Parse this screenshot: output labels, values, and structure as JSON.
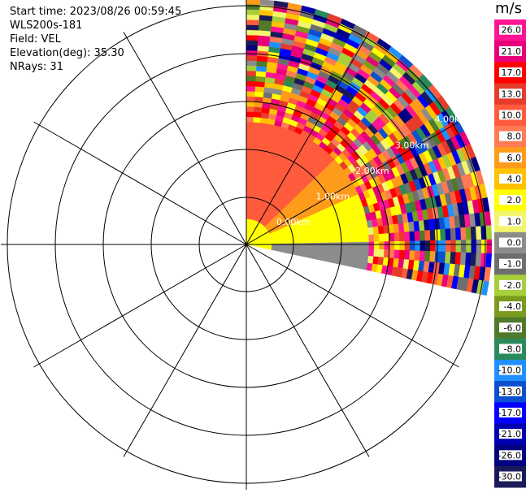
{
  "info": {
    "start_time": "Start time: 2023/08/26 00:59:45",
    "site": "WLS200s-181",
    "field": "Field: VEL",
    "elevation": "Elevation(deg): 35.30",
    "nrays": "NRays: 31"
  },
  "ring_labels": [
    "0.00km",
    "1.00km",
    "2.00km",
    "3.00km",
    "4.00km"
  ],
  "colorbar": {
    "unit": "m/s",
    "ticks": [
      "26.0",
      "21.0",
      "17.0",
      "13.0",
      "10.0",
      "8.0",
      "6.0",
      "4.0",
      "2.0",
      "1.0",
      "0.0",
      "-1.0",
      "-2.0",
      "-4.0",
      "-6.0",
      "-8.0",
      "-10.0",
      "-13.0",
      "-17.0",
      "-21.0",
      "-26.0",
      "-30.0"
    ],
    "colors": [
      "#ff1493",
      "#e8007a",
      "#ff0000",
      "#e63b2a",
      "#ff5a3c",
      "#ff7a55",
      "#ff9b1a",
      "#ffc200",
      "#ffff00",
      "#f3f56e",
      "#8c8c8c",
      "#6e6e6e",
      "#a6cf3a",
      "#7a9b1e",
      "#4e7a2a",
      "#2b8a5a",
      "#1e90ff",
      "#0a50d0",
      "#0000ff",
      "#0000b0",
      "#000080",
      "#1a1a5a"
    ]
  }
}
